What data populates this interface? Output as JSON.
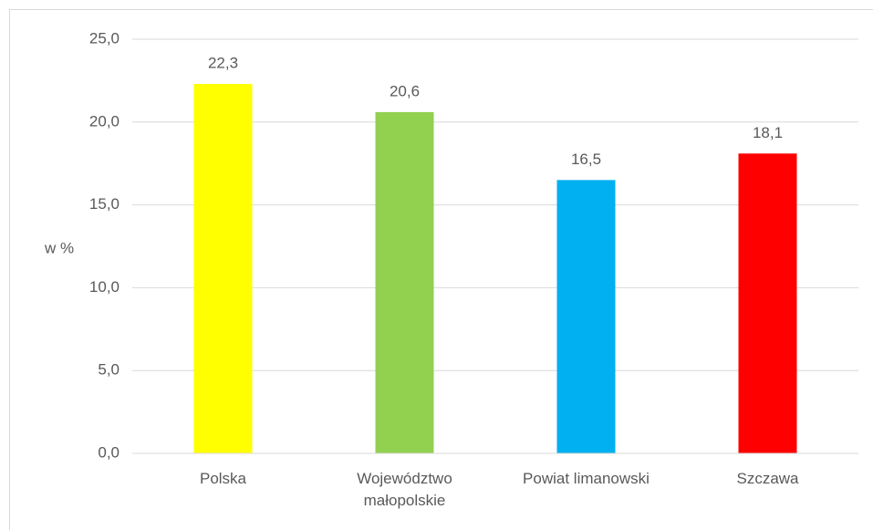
{
  "chart_data": {
    "type": "bar",
    "y_label": "w %",
    "categories": [
      "Polska",
      "Województwo małopolskie",
      "Powiat limanowski",
      "Szczawa"
    ],
    "values": [
      22.3,
      20.6,
      16.5,
      18.1
    ],
    "value_labels": [
      "22,3",
      "20,6",
      "16,5",
      "18,1"
    ],
    "colors": [
      "#ffff00",
      "#92d050",
      "#00b0f0",
      "#ff0000"
    ],
    "ylim": [
      0,
      25
    ],
    "yticks": [
      {
        "value": 0,
        "label": "0,0"
      },
      {
        "value": 5,
        "label": "5,0"
      },
      {
        "value": 10,
        "label": "10,0"
      },
      {
        "value": 15,
        "label": "15,0"
      },
      {
        "value": 20,
        "label": "20,0"
      },
      {
        "value": 25,
        "label": "25,0"
      }
    ],
    "grid": true
  }
}
